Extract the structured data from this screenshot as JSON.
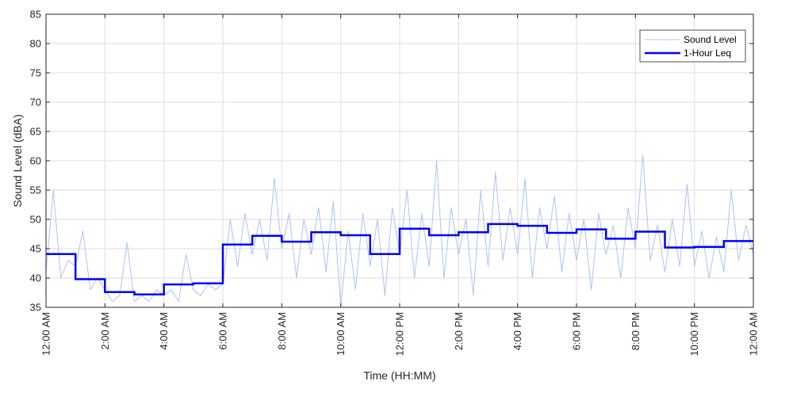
{
  "chart_data": {
    "type": "line",
    "title": "",
    "xlabel": "Time (HH:MM)",
    "ylabel": "Sound Level (dBA)",
    "xlim": [
      0,
      24
    ],
    "ylim": [
      35,
      85
    ],
    "yticks": [
      35,
      40,
      45,
      50,
      55,
      60,
      65,
      70,
      75,
      80,
      85
    ],
    "xticks": [
      0,
      2,
      4,
      6,
      8,
      10,
      12,
      14,
      16,
      18,
      20,
      22,
      24
    ],
    "xtick_labels": [
      "12:00 AM",
      "2:00 AM",
      "4:00 AM",
      "6:00 AM",
      "8:00 AM",
      "10:00 AM",
      "12:00 PM",
      "2:00 PM",
      "4:00 PM",
      "6:00 PM",
      "8:00 PM",
      "10:00 PM",
      "12:00 AM"
    ],
    "grid": true,
    "legend": "top-right",
    "series": [
      {
        "name": "Sound Level",
        "style": "thin-line",
        "color": "#a8c4f5",
        "x": [
          0.0,
          0.25,
          0.5,
          0.75,
          1.0,
          1.25,
          1.5,
          1.75,
          2.0,
          2.25,
          2.5,
          2.75,
          3.0,
          3.25,
          3.5,
          3.75,
          4.0,
          4.25,
          4.5,
          4.75,
          5.0,
          5.25,
          5.5,
          5.75,
          6.0,
          6.25,
          6.5,
          6.75,
          7.0,
          7.25,
          7.5,
          7.75,
          8.0,
          8.25,
          8.5,
          8.75,
          9.0,
          9.25,
          9.5,
          9.75,
          10.0,
          10.25,
          10.5,
          10.75,
          11.0,
          11.25,
          11.5,
          11.75,
          12.0,
          12.25,
          12.5,
          12.75,
          13.0,
          13.25,
          13.5,
          13.75,
          14.0,
          14.25,
          14.5,
          14.75,
          15.0,
          15.25,
          15.5,
          15.75,
          16.0,
          16.25,
          16.5,
          16.75,
          17.0,
          17.25,
          17.5,
          17.75,
          18.0,
          18.25,
          18.5,
          18.75,
          19.0,
          19.25,
          19.5,
          19.75,
          20.0,
          20.25,
          20.5,
          20.75,
          21.0,
          21.25,
          21.5,
          21.75,
          22.0,
          22.25,
          22.5,
          22.75,
          23.0,
          23.25,
          23.5,
          23.75,
          24.0
        ],
        "y": [
          41,
          55,
          40,
          43,
          42,
          48,
          38,
          40,
          38,
          36,
          37,
          46,
          36,
          37,
          36,
          38,
          37,
          38,
          36,
          44,
          38,
          37,
          39,
          38,
          39,
          50,
          42,
          51,
          44,
          50,
          43,
          57,
          45,
          51,
          40,
          50,
          44,
          52,
          41,
          53,
          35,
          48,
          38,
          51,
          42,
          50,
          37,
          52,
          44,
          55,
          40,
          51,
          42,
          60,
          40,
          52,
          44,
          50,
          37,
          55,
          42,
          58,
          43,
          52,
          44,
          57,
          40,
          52,
          45,
          54,
          41,
          51,
          43,
          50,
          38,
          51,
          44,
          49,
          40,
          52,
          45,
          61,
          43,
          49,
          41,
          50,
          42,
          56,
          42,
          48,
          40,
          47,
          41,
          55,
          43,
          49,
          44
        ]
      },
      {
        "name": "1-Hour Leq",
        "style": "step",
        "color": "#0000ff",
        "x": [
          0,
          1,
          2,
          3,
          4,
          5,
          6,
          7,
          8,
          9,
          10,
          11,
          12,
          13,
          14,
          15,
          16,
          17,
          18,
          19,
          20,
          21,
          22,
          23,
          24
        ],
        "y": [
          44.1,
          39.8,
          37.6,
          37.2,
          38.9,
          39.1,
          45.7,
          47.2,
          46.2,
          47.8,
          47.3,
          44.1,
          48.4,
          47.3,
          47.8,
          49.2,
          48.9,
          47.7,
          48.3,
          46.7,
          47.9,
          45.2,
          45.3,
          46.3,
          46.3
        ]
      }
    ]
  }
}
